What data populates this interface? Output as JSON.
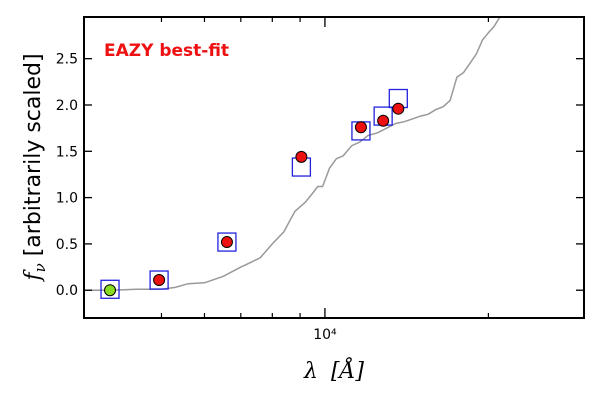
{
  "chart_data": {
    "type": "scatter",
    "xscale": "log",
    "xlim": [
      3600,
      30000
    ],
    "ylim": [
      -0.3,
      2.95
    ],
    "x_ticks": [
      {
        "value": 10000,
        "label": "10⁴"
      }
    ],
    "x_minor_ticks": [
      5000,
      6000,
      7000,
      8000,
      9000,
      20000
    ],
    "y_ticks": [
      0.0,
      0.5,
      1.0,
      1.5,
      2.0,
      2.5
    ],
    "y_tick_labels": [
      "0.0",
      "0.5",
      "1.0",
      "1.5",
      "2.0",
      "2.5"
    ],
    "xlabel_main": "λ",
    "xlabel_unit": "[Å]",
    "ylabel_sym": "f",
    "ylabel_sub": "ν",
    "ylabel_text": " [arbitrarily scaled]",
    "annotation": {
      "text": "EAZY best-fit",
      "color": "#ee1111"
    },
    "template": {
      "color": "#999999",
      "x": [
        3600,
        4000,
        4500,
        5000,
        5300,
        5600,
        6000,
        6500,
        7000,
        7300,
        7600,
        8000,
        8400,
        8800,
        9200,
        9500,
        9700,
        9900,
        10200,
        10500,
        10800,
        11200,
        11600,
        12000,
        12500,
        13000,
        13500,
        14000,
        14500,
        15000,
        15500,
        16000,
        16500,
        17000,
        17500,
        18000,
        18500,
        19000,
        19500,
        20000,
        20500,
        21000
      ],
      "y": [
        0.0,
        0.0,
        0.01,
        0.01,
        0.03,
        0.07,
        0.08,
        0.15,
        0.25,
        0.3,
        0.35,
        0.5,
        0.63,
        0.85,
        0.95,
        1.05,
        1.12,
        1.12,
        1.32,
        1.42,
        1.45,
        1.56,
        1.6,
        1.67,
        1.7,
        1.75,
        1.8,
        1.82,
        1.85,
        1.88,
        1.9,
        1.95,
        1.98,
        2.05,
        2.3,
        2.35,
        2.45,
        2.55,
        2.7,
        2.78,
        2.85,
        2.95
      ]
    },
    "observed": {
      "fill": "#ee1111",
      "stroke": "#000000",
      "x": [
        4020,
        4950,
        6600,
        9050,
        11650,
        12800,
        13650
      ],
      "y": [
        0.0,
        0.11,
        0.52,
        1.44,
        1.76,
        1.83,
        1.96
      ],
      "special_fill": "#88dd22",
      "special_index": 0
    },
    "model": {
      "stroke": "#2222dd",
      "x": [
        4020,
        4950,
        6600,
        9050,
        11650,
        12800,
        13650
      ],
      "y": [
        0.01,
        0.11,
        0.52,
        1.33,
        1.72,
        1.88,
        2.07
      ]
    }
  }
}
